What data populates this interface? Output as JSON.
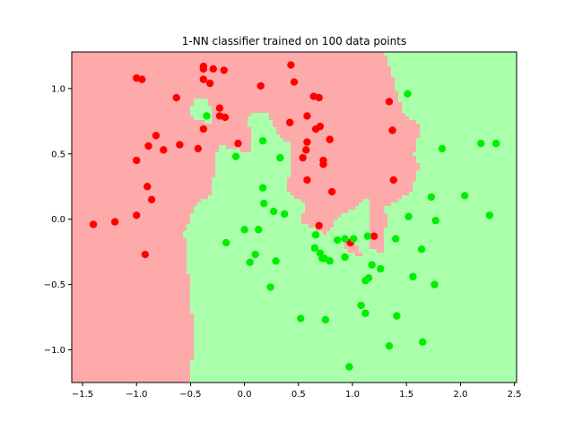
{
  "chart_data": {
    "type": "scatter",
    "title": "1-NN classifier trained on 100 data points",
    "xlabel": "",
    "ylabel": "",
    "xlim": [
      -1.6,
      2.52
    ],
    "ylim": [
      -1.25,
      1.28
    ],
    "x_ticks": [
      -1.5,
      -1.0,
      -0.5,
      0.0,
      0.5,
      1.0,
      1.5,
      2.0,
      2.5
    ],
    "x_tick_labels": [
      "−1.5",
      "−1.0",
      "−0.5",
      "0.0",
      "0.5",
      "1.0",
      "1.5",
      "2.0",
      "2.5"
    ],
    "y_ticks": [
      -1.0,
      -0.5,
      0.0,
      0.5,
      1.0
    ],
    "y_tick_labels": [
      "−1.0",
      "−0.5",
      "0.0",
      "0.5",
      "1.0"
    ],
    "grid": false,
    "legend": "none",
    "colors": {
      "class0_point": "#ff0000",
      "class1_point": "#00ee00",
      "class0_region": "#ffaaaa",
      "class1_region": "#aaffaa"
    },
    "series": [
      {
        "class": 0,
        "color": "#ff0000",
        "points": [
          [
            -1.4,
            -0.04
          ],
          [
            -1.2,
            -0.02
          ],
          [
            -1.0,
            0.03
          ],
          [
            -0.92,
            -0.27
          ],
          [
            -0.9,
            0.25
          ],
          [
            -0.86,
            0.15
          ],
          [
            -1.0,
            0.45
          ],
          [
            -0.89,
            0.56
          ],
          [
            -0.82,
            0.64
          ],
          [
            -0.75,
            0.53
          ],
          [
            -0.6,
            0.57
          ],
          [
            -0.43,
            0.54
          ],
          [
            -0.38,
            0.69
          ],
          [
            -0.23,
            0.85
          ],
          [
            -0.23,
            0.79
          ],
          [
            -0.18,
            0.78
          ],
          [
            -0.06,
            0.58
          ],
          [
            -1.0,
            1.08
          ],
          [
            -0.95,
            1.07
          ],
          [
            -0.63,
            0.93
          ],
          [
            -0.38,
            1.17
          ],
          [
            -0.38,
            1.15
          ],
          [
            -0.38,
            1.07
          ],
          [
            -0.32,
            1.04
          ],
          [
            -0.29,
            1.15
          ],
          [
            -0.19,
            1.14
          ],
          [
            0.15,
            1.02
          ],
          [
            0.43,
            1.18
          ],
          [
            0.46,
            1.05
          ],
          [
            0.42,
            0.74
          ],
          [
            0.58,
            0.79
          ],
          [
            0.64,
            0.94
          ],
          [
            0.69,
            0.93
          ],
          [
            0.66,
            0.69
          ],
          [
            0.7,
            0.71
          ],
          [
            0.58,
            0.59
          ],
          [
            0.57,
            0.53
          ],
          [
            0.54,
            0.47
          ],
          [
            0.58,
            0.3
          ],
          [
            0.73,
            0.45
          ],
          [
            0.73,
            0.42
          ],
          [
            0.79,
            0.61
          ],
          [
            0.81,
            0.21
          ],
          [
            0.69,
            -0.05
          ],
          [
            0.98,
            -0.18
          ],
          [
            1.2,
            -0.13
          ],
          [
            1.34,
            0.9
          ],
          [
            1.37,
            0.68
          ],
          [
            1.38,
            0.3
          ]
        ]
      },
      {
        "class": 1,
        "color": "#00ee00",
        "points": [
          [
            -0.35,
            0.79
          ],
          [
            -0.08,
            0.48
          ],
          [
            0.17,
            0.6
          ],
          [
            0.33,
            0.47
          ],
          [
            0.17,
            0.24
          ],
          [
            0.18,
            0.12
          ],
          [
            0.27,
            0.06
          ],
          [
            0.37,
            0.04
          ],
          [
            -0.17,
            -0.18
          ],
          [
            0.0,
            -0.08
          ],
          [
            0.13,
            -0.08
          ],
          [
            0.05,
            -0.33
          ],
          [
            0.1,
            -0.27
          ],
          [
            0.24,
            -0.52
          ],
          [
            0.29,
            -0.32
          ],
          [
            0.52,
            -0.76
          ],
          [
            0.65,
            -0.22
          ],
          [
            0.66,
            -0.12
          ],
          [
            0.7,
            -0.26
          ],
          [
            0.72,
            -0.3
          ],
          [
            0.74,
            -0.3
          ],
          [
            0.75,
            -0.77
          ],
          [
            0.79,
            -0.32
          ],
          [
            0.86,
            -0.16
          ],
          [
            0.93,
            -0.15
          ],
          [
            0.93,
            -0.29
          ],
          [
            0.97,
            -1.13
          ],
          [
            1.01,
            -0.15
          ],
          [
            1.08,
            -0.66
          ],
          [
            1.12,
            -0.72
          ],
          [
            1.12,
            -0.47
          ],
          [
            1.14,
            -0.13
          ],
          [
            1.15,
            -0.45
          ],
          [
            1.18,
            -0.35
          ],
          [
            1.26,
            -0.38
          ],
          [
            1.34,
            -0.97
          ],
          [
            1.4,
            -0.15
          ],
          [
            1.41,
            -0.74
          ],
          [
            1.51,
            0.96
          ],
          [
            1.52,
            0.02
          ],
          [
            1.56,
            -0.44
          ],
          [
            1.64,
            -0.23
          ],
          [
            1.65,
            -0.94
          ],
          [
            1.73,
            0.17
          ],
          [
            1.76,
            -0.5
          ],
          [
            1.77,
            -0.01
          ],
          [
            1.83,
            0.54
          ],
          [
            2.04,
            0.18
          ],
          [
            2.19,
            0.58
          ],
          [
            2.27,
            0.03
          ],
          [
            2.33,
            0.58
          ]
        ]
      }
    ]
  }
}
